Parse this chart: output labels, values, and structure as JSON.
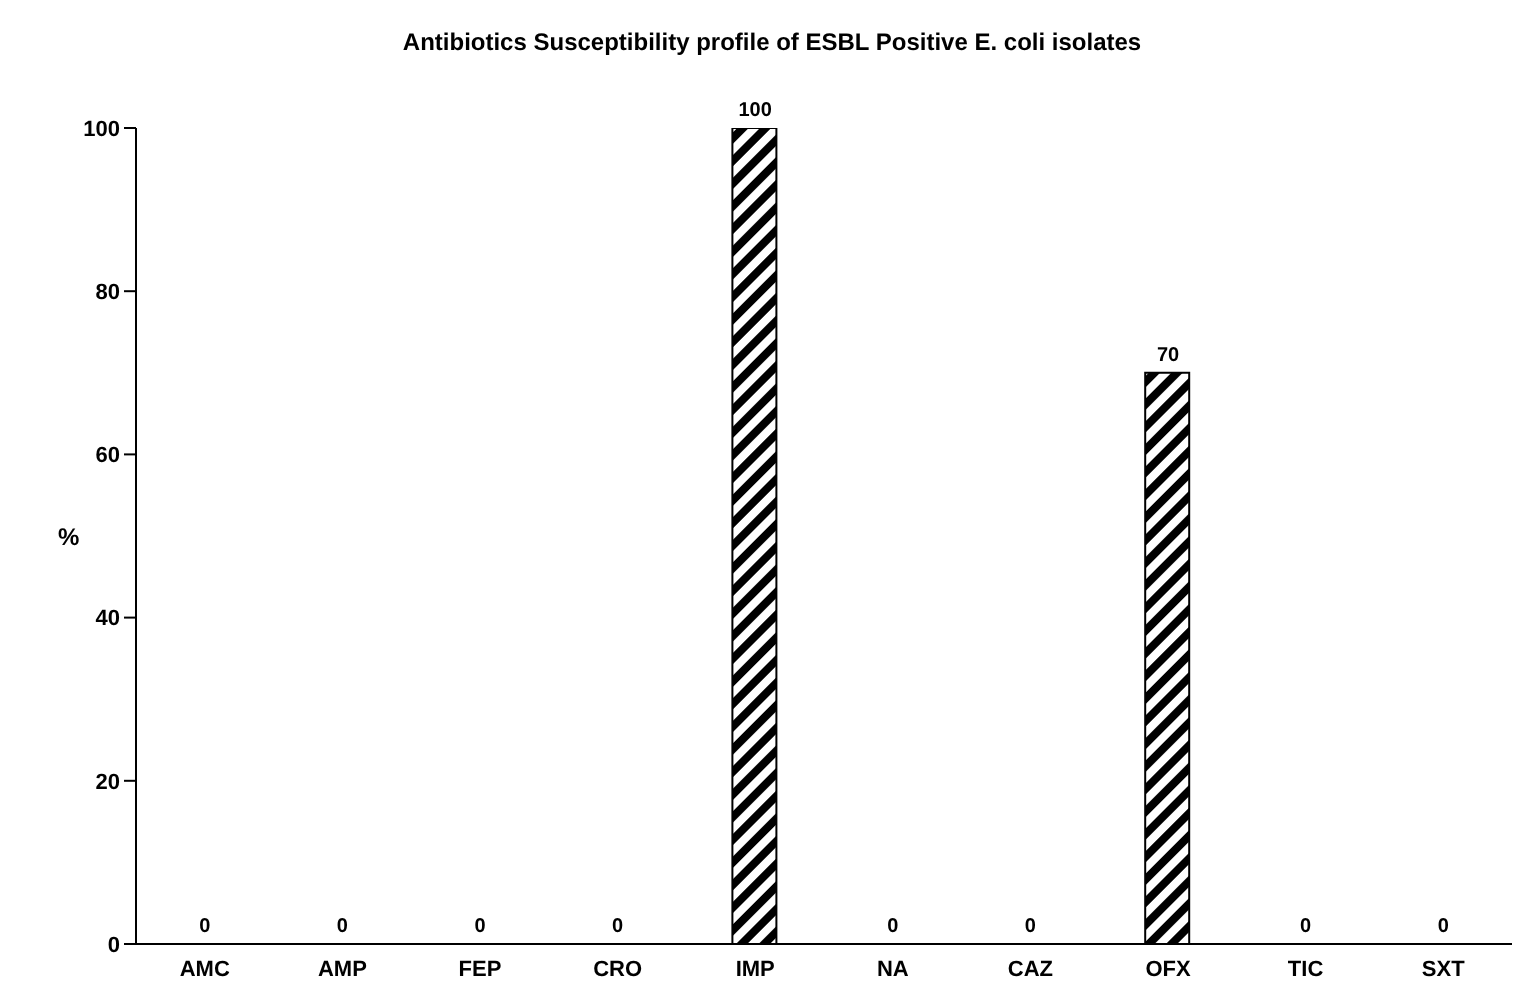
{
  "chart_data": {
    "type": "bar",
    "title": "Antibiotics Susceptibility profile of ESBL Positive E. coli isolates",
    "ylabel": "%",
    "categories": [
      "AMC",
      "AMP",
      "FEP",
      "CRO",
      "IMP",
      "NA",
      "CAZ",
      "OFX",
      "TIC",
      "SXT"
    ],
    "values": [
      0,
      0,
      0,
      0,
      100,
      0,
      0,
      70,
      0,
      0
    ],
    "color": "#000000",
    "ylim": [
      0,
      100
    ],
    "yticks": [
      0,
      20,
      40,
      60,
      80,
      100
    ],
    "grid": false,
    "data_labels": true
  }
}
